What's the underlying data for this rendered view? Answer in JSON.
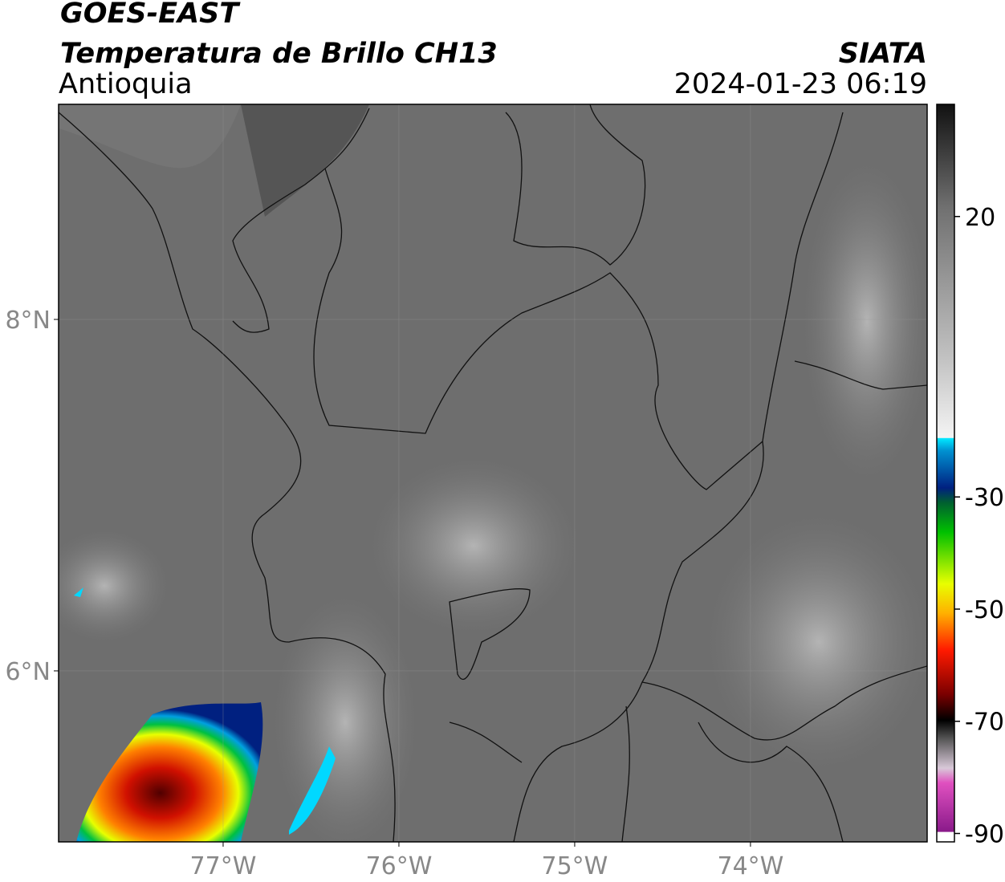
{
  "header": {
    "title": "GOES-EAST",
    "subtitle": "Temperatura de Brillo CH13",
    "region": "Antioquia",
    "source": "SIATA",
    "datetime": "2024-01-23 06:19"
  },
  "map": {
    "lonlim": [
      -77.936,
      -72.995
    ],
    "latlim": [
      5.027,
      9.224
    ],
    "lon_ticks": [
      {
        "value": -77,
        "label": "77°W"
      },
      {
        "value": -76,
        "label": "76°W"
      },
      {
        "value": -75,
        "label": "75°W"
      },
      {
        "value": -74,
        "label": "74°W"
      }
    ],
    "lat_ticks": [
      {
        "value": 8,
        "label": "8°N"
      },
      {
        "value": 6,
        "label": "6°N"
      }
    ]
  },
  "colorbar": {
    "lim": [
      -91.5,
      40
    ],
    "ticks": [
      20,
      -30,
      -50,
      -70,
      -90
    ]
  }
}
